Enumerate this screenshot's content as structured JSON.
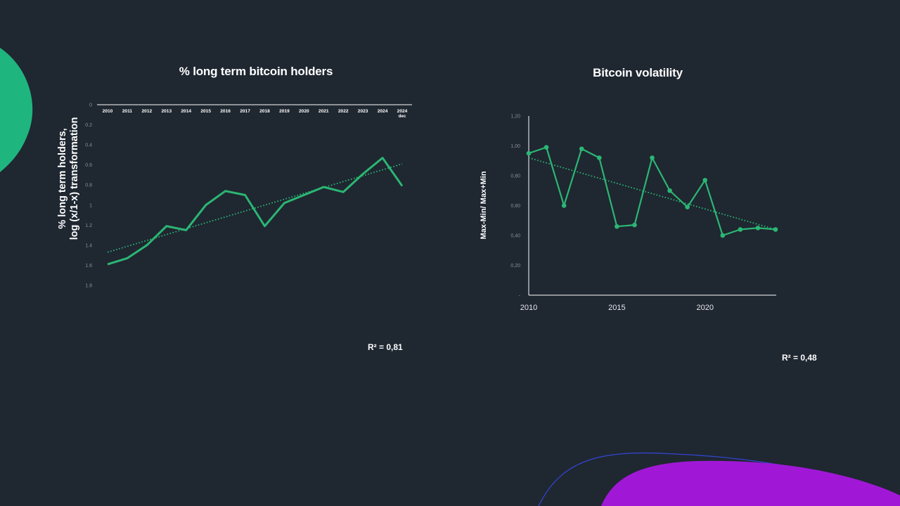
{
  "colors": {
    "background": "#1f2731",
    "series": "#2bb673",
    "accent_green": "#1fb57e",
    "accent_purple": "#a018d6",
    "accent_blue": "#3344cc"
  },
  "decorations": [
    "green-blob",
    "purple-blob",
    "blue-curve"
  ],
  "chart_data": [
    {
      "type": "line",
      "title": "% long term bitcoin holders",
      "ylabel_lines": [
        "% long term holders,",
        "log (x/1-x) transformation"
      ],
      "categories": [
        "2010",
        "2011",
        "2012",
        "2013",
        "2014",
        "2015",
        "2016",
        "2017",
        "2018",
        "2019",
        "2020",
        "2021",
        "2022",
        "2023",
        "2024",
        "2024"
      ],
      "category_sub": [
        "",
        "",
        "",
        "",
        "",
        "",
        "",
        "",
        "",
        "",
        "",
        "",
        "",
        "",
        "",
        "dec"
      ],
      "series": [
        {
          "values": [
            1.59,
            1.53,
            1.4,
            1.21,
            1.25,
            1.0,
            0.86,
            0.9,
            1.21,
            0.98,
            0.9,
            0.82,
            0.87,
            0.69,
            0.53,
            0.81
          ]
        }
      ],
      "trendline": {
        "style": "dotted",
        "start": 1.47,
        "end": 0.59
      },
      "y_axis": {
        "inverted": true,
        "ylim": [
          0,
          1.8
        ],
        "ticks": [
          "0",
          "0.2",
          "0.4",
          "0.6",
          "0.8",
          "1",
          "1.2",
          "1.4",
          "1.6",
          "1.8"
        ]
      },
      "r2_label": "R² = 0,81",
      "grid": false
    },
    {
      "type": "line",
      "title": "Bitcoin volatility",
      "ylabel": "Max-Min/ Max+Min",
      "x": [
        2010,
        2011,
        2012,
        2013,
        2014,
        2015,
        2016,
        2017,
        2018,
        2019,
        2020,
        2021,
        2022,
        2023,
        2024
      ],
      "series": [
        {
          "values": [
            0.95,
            0.99,
            0.6,
            0.98,
            0.92,
            0.46,
            0.47,
            0.92,
            0.7,
            0.59,
            0.77,
            0.4,
            0.44,
            0.45,
            0.44
          ]
        }
      ],
      "markers": true,
      "trendline": {
        "style": "dotted",
        "start": 0.92,
        "end": 0.44
      },
      "x_ticks": [
        "2010",
        "2015",
        "2020"
      ],
      "y_ticks": [
        "-",
        "0,20",
        "0,40",
        "0,60",
        "0,80",
        "1,00",
        "1,20"
      ],
      "ylim": [
        0,
        1.2
      ],
      "xlim": [
        2010,
        2024
      ],
      "r2_label": "R² = 0,48",
      "grid": false
    }
  ]
}
